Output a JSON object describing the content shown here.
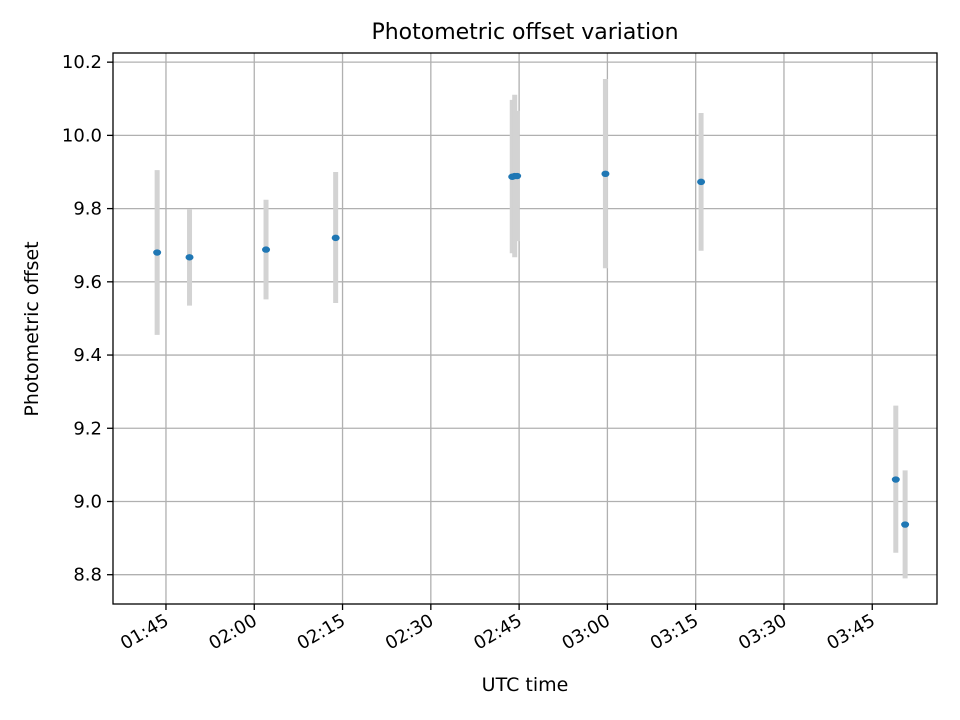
{
  "chart_data": {
    "type": "scatter",
    "title": "Photometric offset variation",
    "xlabel": "UTC time",
    "ylabel": "Photometric offset",
    "x_unit": "UTC HH:MM",
    "xlim": [
      "01:36",
      "03:56"
    ],
    "ylim": [
      8.72,
      10.225
    ],
    "x_ticks": [
      "01:45",
      "02:00",
      "02:15",
      "02:30",
      "02:45",
      "03:00",
      "03:15",
      "03:30",
      "03:45"
    ],
    "y_ticks": [
      "8.8",
      "9.0",
      "9.2",
      "9.4",
      "9.6",
      "9.8",
      "10.0",
      "10.2"
    ],
    "y_tick_values": [
      8.8,
      9.0,
      9.2,
      9.4,
      9.6,
      9.8,
      10.0,
      10.2
    ],
    "grid": true,
    "points": [
      {
        "x": "01:43:30",
        "y": 9.68,
        "err_low": 9.455,
        "err_high": 9.905
      },
      {
        "x": "01:49:00",
        "y": 9.667,
        "err_low": 9.535,
        "err_high": 9.798
      },
      {
        "x": "02:02:00",
        "y": 9.688,
        "err_low": 9.552,
        "err_high": 9.824
      },
      {
        "x": "02:13:50",
        "y": 9.72,
        "err_low": 9.542,
        "err_high": 9.9
      },
      {
        "x": "02:43:50",
        "y": 9.887,
        "err_low": 9.678,
        "err_high": 10.097
      },
      {
        "x": "02:44:15",
        "y": 9.889,
        "err_low": 9.667,
        "err_high": 10.111
      },
      {
        "x": "02:44:40",
        "y": 9.889,
        "err_low": 9.711,
        "err_high": 10.067
      },
      {
        "x": "02:59:40",
        "y": 9.895,
        "err_low": 9.637,
        "err_high": 10.154
      },
      {
        "x": "03:15:55",
        "y": 9.873,
        "err_low": 9.685,
        "err_high": 10.061
      },
      {
        "x": "03:49:00",
        "y": 9.06,
        "err_low": 8.86,
        "err_high": 9.262
      },
      {
        "x": "03:50:35",
        "y": 8.937,
        "err_low": 8.79,
        "err_high": 9.085
      }
    ],
    "colors": {
      "marker": "#1f77b4",
      "errorbar": "#d3d3d3",
      "grid": "#b0b0b0"
    }
  }
}
